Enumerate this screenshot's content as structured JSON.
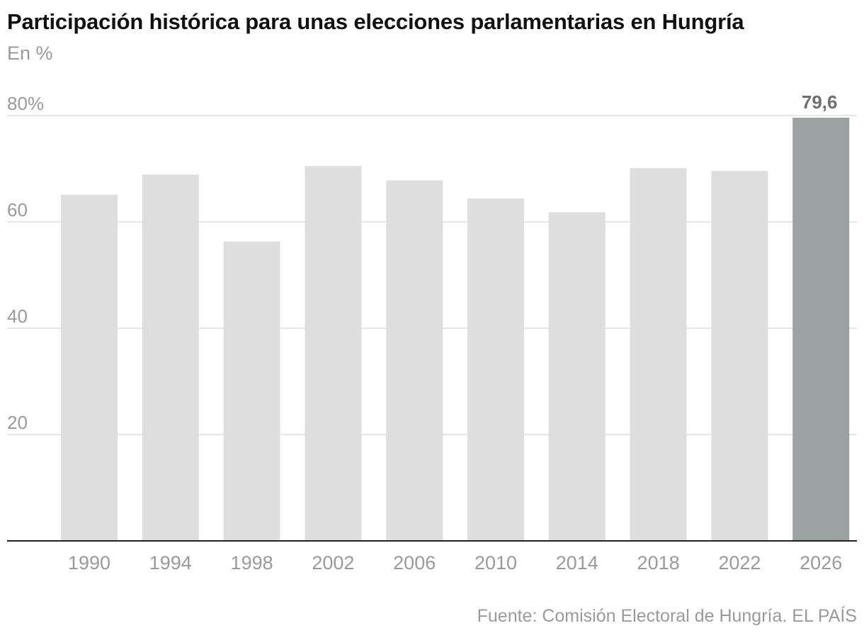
{
  "header": {
    "title": "Participación histórica para unas elecciones parlamentarias en Hungría",
    "subtitle": "En %"
  },
  "footer": {
    "source": "Fuente: Comisión Electoral de Hungría. EL PAÍS"
  },
  "chart_data": {
    "type": "bar",
    "title": "Participación histórica para unas elecciones parlamentarias en Hungría",
    "subtitle": "En %",
    "categories": [
      "1990",
      "1994",
      "1998",
      "2002",
      "2006",
      "2010",
      "2014",
      "2018",
      "2022",
      "2026"
    ],
    "values": [
      65.1,
      68.9,
      56.3,
      70.5,
      67.8,
      64.4,
      61.8,
      70.1,
      69.6,
      79.6
    ],
    "ylim": [
      0,
      80
    ],
    "yticks": [
      {
        "value": 20,
        "label": "20"
      },
      {
        "value": 40,
        "label": "40"
      },
      {
        "value": 60,
        "label": "60"
      },
      {
        "value": 80,
        "label": "80%"
      }
    ],
    "grid": true,
    "highlight": {
      "category": "2026",
      "label": "79,6"
    },
    "colors": {
      "bar": "#dedede",
      "highlight_bar": "#9aa3a1",
      "grid": "#dddddd",
      "baseline": "#222222",
      "tick_text": "#9a9a9a",
      "highlight_label": "#6f6f6f"
    }
  }
}
